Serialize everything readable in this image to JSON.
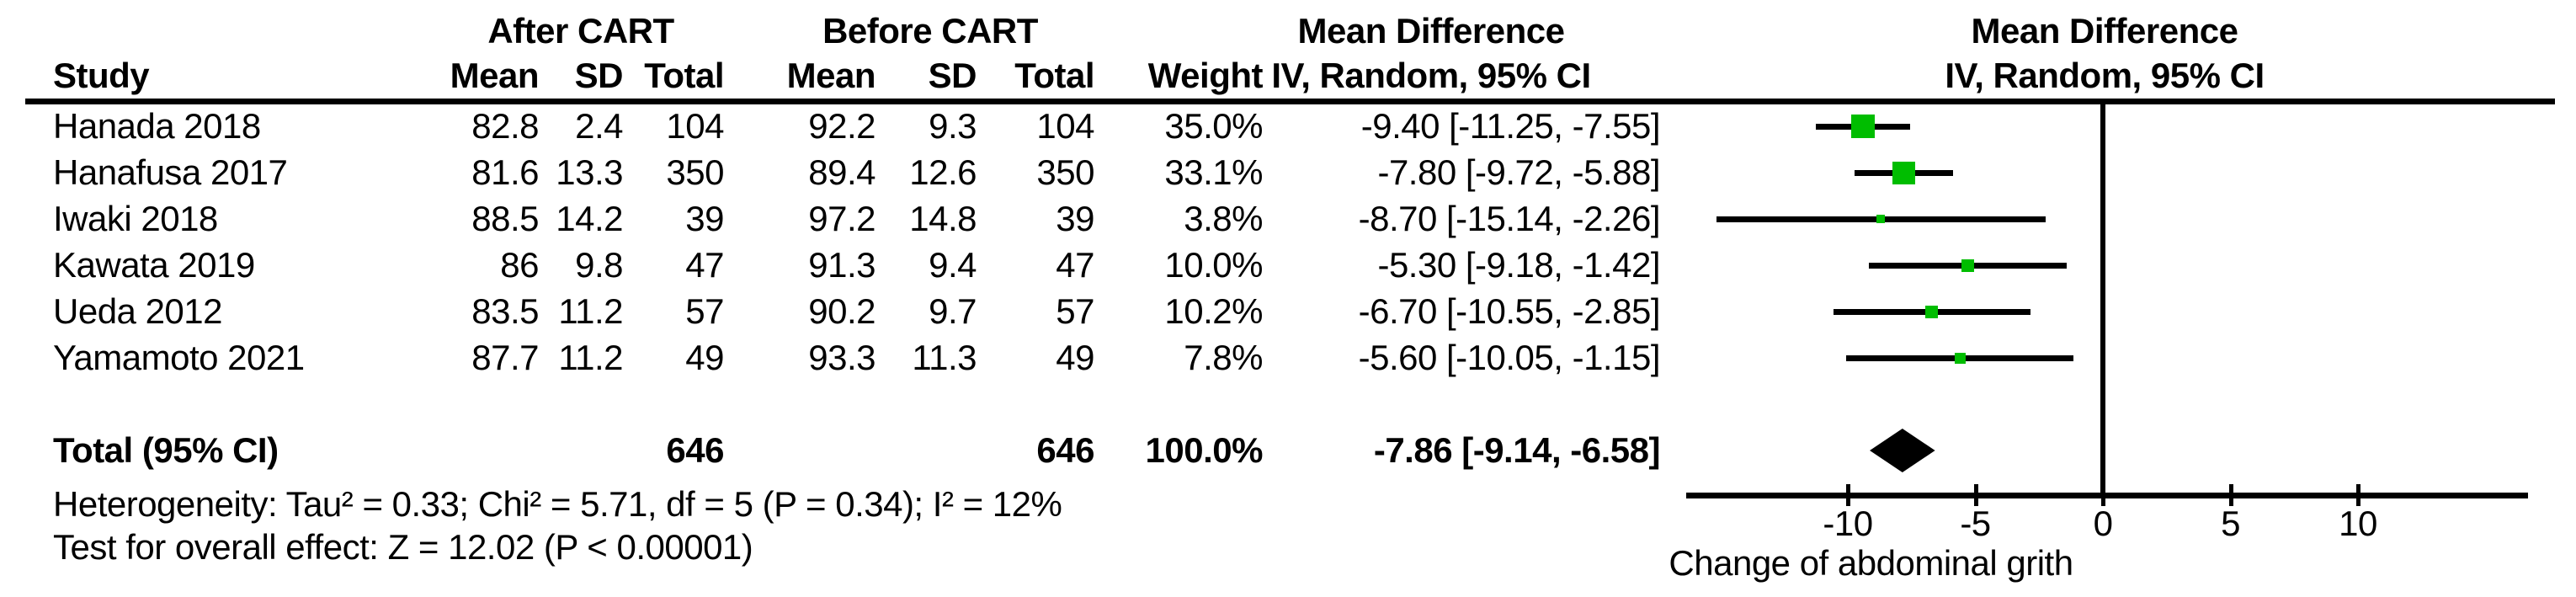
{
  "colors": {
    "marker_green": "#00bd00",
    "line_black": "#000000",
    "background": "#ffffff"
  },
  "chart_data": {
    "type": "forest",
    "group_after": "After CART",
    "group_before": "Before CART",
    "effect_header": "Mean Difference",
    "method_header": "IV, Random, 95% CI",
    "columns": {
      "study": "Study",
      "mean": "Mean",
      "sd": "SD",
      "total": "Total",
      "weight": "Weight"
    },
    "studies": [
      {
        "name": "Hanada 2018",
        "after_mean": "82.8",
        "after_sd": "2.4",
        "after_total": "104",
        "before_mean": "92.2",
        "before_sd": "9.3",
        "before_total": "104",
        "weight": "35.0%",
        "md": -9.4,
        "ci_low": -11.25,
        "ci_high": -7.55,
        "ci_text": "-9.40 [-11.25, -7.55]"
      },
      {
        "name": "Hanafusa 2017",
        "after_mean": "81.6",
        "after_sd": "13.3",
        "after_total": "350",
        "before_mean": "89.4",
        "before_sd": "12.6",
        "before_total": "350",
        "weight": "33.1%",
        "md": -7.8,
        "ci_low": -9.72,
        "ci_high": -5.88,
        "ci_text": "-7.80 [-9.72, -5.88]"
      },
      {
        "name": "Iwaki 2018",
        "after_mean": "88.5",
        "after_sd": "14.2",
        "after_total": "39",
        "before_mean": "97.2",
        "before_sd": "14.8",
        "before_total": "39",
        "weight": "3.8%",
        "md": -8.7,
        "ci_low": -15.14,
        "ci_high": -2.26,
        "ci_text": "-8.70 [-15.14, -2.26]"
      },
      {
        "name": "Kawata 2019",
        "after_mean": "86",
        "after_sd": "9.8",
        "after_total": "47",
        "before_mean": "91.3",
        "before_sd": "9.4",
        "before_total": "47",
        "weight": "10.0%",
        "md": -5.3,
        "ci_low": -9.18,
        "ci_high": -1.42,
        "ci_text": "-5.30 [-9.18, -1.42]"
      },
      {
        "name": "Ueda 2012",
        "after_mean": "83.5",
        "after_sd": "11.2",
        "after_total": "57",
        "before_mean": "90.2",
        "before_sd": "9.7",
        "before_total": "57",
        "weight": "10.2%",
        "md": -6.7,
        "ci_low": -10.55,
        "ci_high": -2.85,
        "ci_text": "-6.70 [-10.55, -2.85]"
      },
      {
        "name": "Yamamoto 2021",
        "after_mean": "87.7",
        "after_sd": "11.2",
        "after_total": "49",
        "before_mean": "93.3",
        "before_sd": "11.3",
        "before_total": "49",
        "weight": "7.8%",
        "md": -5.6,
        "ci_low": -10.05,
        "ci_high": -1.15,
        "ci_text": "-5.60 [-10.05, -1.15]"
      }
    ],
    "total_row": {
      "label": "Total (95% CI)",
      "after_total": "646",
      "before_total": "646",
      "weight": "100.0%",
      "md": -7.86,
      "ci_low": -9.14,
      "ci_high": -6.58,
      "ci_text": "-7.86 [-9.14, -6.58]"
    },
    "heterogeneity": "Heterogeneity: Tau² = 0.33; Chi² = 5.71, df = 5 (P = 0.34); I² = 12%",
    "overall_effect_test": "Test for overall effect: Z = 12.02 (P < 0.00001)",
    "x_ticks": [
      {
        "label": "-10",
        "value": -10
      },
      {
        "label": "-5",
        "value": -5
      },
      {
        "label": "0",
        "value": 0
      },
      {
        "label": "5",
        "value": 5
      },
      {
        "label": "10",
        "value": 10
      }
    ],
    "xlabel": "Change of abdominal grith",
    "x_axis_range": [
      -16.3,
      16.6
    ],
    "zero_reference": 0,
    "grid": false,
    "legend_position": "none"
  }
}
